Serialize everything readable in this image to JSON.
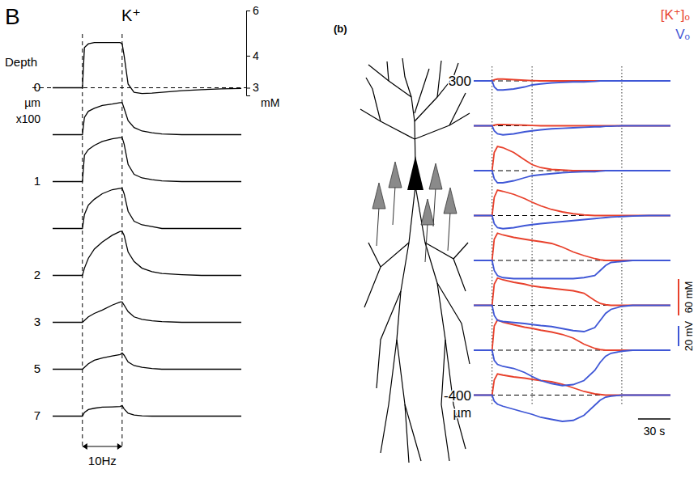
{
  "chart_data": [
    {
      "type": "line",
      "panel": "B",
      "title": "K⁺",
      "color": "#000000",
      "log": "y",
      "x": [
        -15,
        -5,
        0,
        1,
        3,
        6,
        10,
        15,
        19,
        20,
        21,
        23,
        26,
        30,
        35,
        40,
        50,
        60,
        70,
        80
      ],
      "xlim": [
        -15,
        80
      ],
      "ylim": [
        2.8,
        6
      ],
      "yticks": [
        3,
        4,
        6
      ],
      "y_unit": "mM",
      "tick_labels": "y",
      "depth_title": "Depth",
      "depth_unit": "µm",
      "depth_scale": "x100",
      "stimulus": {
        "start": 0,
        "end": 20,
        "label": "10Hz"
      },
      "series": [
        {
          "depth": "0",
          "values": [
            3,
            3,
            3,
            4.3,
            4.45,
            4.5,
            4.5,
            4.5,
            4.5,
            4.45,
            4.0,
            3.1,
            2.88,
            2.85,
            2.86,
            2.88,
            2.92,
            2.95,
            2.97,
            2.98
          ]
        },
        {
          "depth": null,
          "values": [
            3,
            3,
            3,
            3.5,
            3.7,
            3.8,
            3.9,
            3.95,
            4.0,
            4.0,
            3.8,
            3.4,
            3.2,
            3.1,
            3.05,
            3.02,
            3,
            3,
            3,
            3
          ]
        },
        {
          "depth": "1",
          "values": [
            3,
            3,
            3,
            3.8,
            4.0,
            4.15,
            4.3,
            4.4,
            4.45,
            4.45,
            4.2,
            3.5,
            3.2,
            3.1,
            3.05,
            3.02,
            3,
            3,
            3,
            3
          ]
        },
        {
          "depth": null,
          "values": [
            3,
            3,
            3,
            3.4,
            3.7,
            3.9,
            4.1,
            4.25,
            4.3,
            4.3,
            4.1,
            3.5,
            3.2,
            3.1,
            3.05,
            3,
            3,
            3,
            3,
            3
          ]
        },
        {
          "depth": "2",
          "values": [
            3,
            3,
            3,
            3.2,
            3.5,
            3.8,
            4.05,
            4.3,
            4.45,
            4.45,
            4.3,
            3.7,
            3.4,
            3.2,
            3.1,
            3.05,
            3.02,
            3,
            3,
            3
          ]
        },
        {
          "depth": "3",
          "values": [
            3,
            3,
            3,
            3.05,
            3.15,
            3.25,
            3.35,
            3.5,
            3.6,
            3.6,
            3.5,
            3.3,
            3.15,
            3.08,
            3.04,
            3.02,
            3,
            3,
            3,
            3
          ]
        },
        {
          "depth": "5",
          "values": [
            3,
            3,
            3,
            3.05,
            3.15,
            3.25,
            3.32,
            3.38,
            3.42,
            3.47,
            3.4,
            3.2,
            3.1,
            3.05,
            3.02,
            3,
            3,
            3,
            3,
            3
          ]
        },
        {
          "depth": "7",
          "values": [
            3,
            3,
            3,
            3.1,
            3.18,
            3.22,
            3.25,
            3.26,
            3.27,
            3.3,
            3.2,
            3.08,
            3.03,
            3.01,
            3,
            3,
            3,
            3,
            3,
            3
          ]
        }
      ]
    },
    {
      "type": "line",
      "panel": "(b)",
      "tick_labels": false,
      "legend": "top-right",
      "x": [
        -17,
        -1,
        0,
        2,
        5,
        10,
        20,
        30,
        37,
        45,
        55,
        65,
        75,
        85,
        95,
        100,
        105,
        110,
        120,
        130,
        145,
        165
      ],
      "xlim": [
        -17,
        165
      ],
      "vlines": [
        0,
        37,
        120
      ],
      "time_bar": {
        "value": 30,
        "label": "30 s"
      },
      "depth_labels": [
        "300",
        null,
        null,
        null,
        null,
        null,
        null,
        "-400"
      ],
      "depth_unit": "µm",
      "series": [
        {
          "name": "[K⁺]ₒ",
          "color": "#e8412c",
          "scale_bar": {
            "value": 60,
            "label": "60 mM"
          },
          "values": [
            [
              0,
              0,
              0,
              2,
              3,
              3,
              2,
              1,
              0.5,
              0,
              0,
              0,
              0,
              0,
              0,
              0,
              0,
              0,
              0,
              0,
              0,
              0
            ],
            [
              0,
              0,
              0,
              1,
              2,
              2,
              1.5,
              1,
              0.5,
              0,
              0,
              0,
              0,
              0,
              0,
              0,
              0,
              0,
              0,
              0,
              0,
              0
            ],
            [
              0,
              0,
              0,
              30,
              40,
              38,
              30,
              18,
              10,
              5,
              2,
              1,
              0,
              0,
              0,
              0,
              0,
              0,
              0,
              0,
              0,
              0
            ],
            [
              0,
              0,
              0,
              30,
              42,
              40,
              35,
              28,
              22,
              16,
              10,
              6,
              3,
              1,
              0,
              0,
              0,
              0,
              0,
              0,
              0,
              0
            ],
            [
              0,
              0,
              0,
              35,
              45,
              42,
              38,
              35,
              33,
              31,
              28,
              22,
              14,
              8,
              3,
              1,
              0,
              0,
              0,
              0,
              0,
              0
            ],
            [
              0,
              0,
              0,
              35,
              45,
              42,
              38,
              35,
              32,
              30,
              28,
              26,
              24,
              20,
              8,
              3,
              1,
              0,
              0,
              0,
              0,
              0
            ],
            [
              0,
              0,
              0,
              40,
              50,
              46,
              42,
              38,
              36,
              33,
              30,
              26,
              20,
              10,
              3,
              1,
              0,
              0,
              0,
              0,
              0,
              0
            ],
            [
              0,
              0,
              0,
              25,
              35,
              33,
              30,
              28,
              26,
              24,
              22,
              18,
              12,
              6,
              2,
              1,
              0,
              0,
              0,
              0,
              0,
              0
            ]
          ]
        },
        {
          "name": "Vₒ",
          "color": "#3f57d6",
          "scale_bar": {
            "value": 20,
            "label": "20 mV"
          },
          "values": [
            [
              0,
              0,
              0,
              -6,
              -9,
              -9,
              -8,
              -6,
              -4,
              -3,
              -2,
              -1.5,
              -1,
              -1,
              -0.5,
              0,
              0,
              0,
              0,
              0,
              0,
              0
            ],
            [
              0,
              0,
              0,
              -5,
              -8,
              -9,
              -8,
              -6,
              -5,
              -4,
              -3,
              -2.5,
              -2,
              -1.5,
              -1,
              -1,
              -0.5,
              -0.5,
              0,
              0,
              0,
              0
            ],
            [
              0,
              0,
              0,
              -8,
              -12,
              -12,
              -10,
              -7,
              -5,
              -4,
              -3,
              -2,
              -1.5,
              -1,
              -1,
              -0.5,
              0,
              0,
              0,
              0,
              0,
              0
            ],
            [
              0,
              0,
              0,
              -8,
              -12,
              -13,
              -12,
              -10,
              -9,
              -8,
              -7,
              -6,
              -5,
              -4,
              -3,
              -2.5,
              -2,
              -1.5,
              -1,
              -0.5,
              0,
              0
            ],
            [
              0,
              0,
              0,
              -10,
              -15,
              -17,
              -18,
              -18,
              -18,
              -18,
              -18,
              -18,
              -18,
              -17,
              -15,
              -10,
              -5,
              -2,
              -1,
              0,
              0,
              0
            ],
            [
              0,
              0,
              0,
              -10,
              -15,
              -16,
              -17,
              -18,
              -19,
              -20,
              -21,
              -23,
              -25,
              -26,
              -22,
              -15,
              -8,
              -4,
              -1,
              0,
              0,
              0
            ],
            [
              0,
              0,
              0,
              -10,
              -14,
              -16,
              -18,
              -22,
              -26,
              -30,
              -33,
              -35,
              -34,
              -30,
              -20,
              -12,
              -6,
              -3,
              -1,
              0,
              0,
              0
            ],
            [
              0,
              0,
              0,
              -6,
              -9,
              -11,
              -14,
              -17,
              -19,
              -22,
              -24,
              -26,
              -25,
              -20,
              -10,
              -5,
              -2,
              -1,
              0,
              0,
              0,
              0
            ]
          ]
        }
      ]
    }
  ]
}
